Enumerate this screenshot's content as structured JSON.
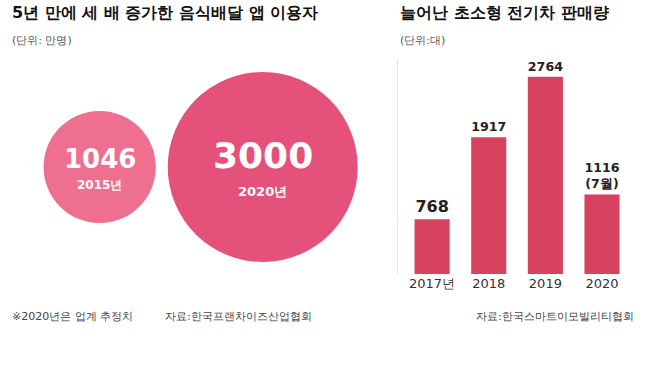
{
  "chart_data": [
    {
      "type": "bubble",
      "title": "5년 만에 세 배 증가한 음식배달 앱 이용자",
      "subtitle": "(단위: 만명)",
      "categories": [
        "2015년",
        "2020년"
      ],
      "values": [
        1046,
        3000
      ],
      "colors": [
        "#ee6f8f",
        "#e4517a"
      ],
      "data_labels": true,
      "tick_labels": false,
      "annotations": [
        "※2020년은 업계 추정치",
        "자료:한국프랜차이즈산업협회"
      ]
    },
    {
      "type": "bar",
      "title": "늘어난 초소형 전기차 판매량",
      "subtitle": "(단위:대)",
      "categories": [
        "2017년",
        "2018",
        "2019",
        "2020"
      ],
      "values": [
        768,
        1917,
        2764,
        1116
      ],
      "value_labels": [
        "768",
        "1917",
        "2764",
        "1116\n(7월)"
      ],
      "color": "#d7435f",
      "ylim": [
        0,
        3000
      ],
      "data_labels": true,
      "tick_labels": "x",
      "annotations": [
        "자료:한국스마트이모빌리티협회"
      ]
    }
  ]
}
